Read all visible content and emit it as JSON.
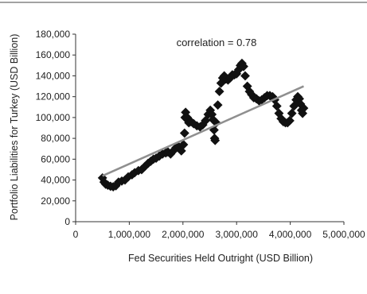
{
  "chart_data": {
    "type": "scatter",
    "title": "",
    "xlabel": "Fed Securities Held Outright (USD Billion)",
    "ylabel": "Portfolio Liabilities for Turkey (USD Billion)",
    "annotation": "correlation = 0.78",
    "xlim": [
      0,
      5000000
    ],
    "ylim": [
      0,
      180000
    ],
    "x_ticks": [
      0,
      1000000,
      2000000,
      3000000,
      4000000,
      5000000
    ],
    "x_tick_labels": [
      "0",
      "1,000,000",
      "2,000,000",
      "3,000,000",
      "4,000,000",
      "5,000,000"
    ],
    "y_ticks": [
      0,
      20000,
      40000,
      60000,
      80000,
      100000,
      120000,
      140000,
      160000,
      180000
    ],
    "y_tick_labels": [
      "0",
      "20,000",
      "40,000",
      "60,000",
      "80,000",
      "100,000",
      "120,000",
      "140,000",
      "160,000",
      "180,000"
    ],
    "grid": false,
    "series": [
      {
        "marker": "diamond",
        "color": "#111111",
        "points": [
          [
            500000,
            42000
          ],
          [
            530000,
            38000
          ],
          [
            560000,
            36000
          ],
          [
            600000,
            35000
          ],
          [
            650000,
            34000
          ],
          [
            700000,
            33500
          ],
          [
            750000,
            34500
          ],
          [
            800000,
            38000
          ],
          [
            860000,
            39000
          ],
          [
            920000,
            40000
          ],
          [
            980000,
            43000
          ],
          [
            1050000,
            45000
          ],
          [
            1100000,
            47000
          ],
          [
            1170000,
            49000
          ],
          [
            1230000,
            50000
          ],
          [
            1290000,
            53000
          ],
          [
            1350000,
            56000
          ],
          [
            1400000,
            58000
          ],
          [
            1450000,
            60000
          ],
          [
            1500000,
            61000
          ],
          [
            1560000,
            63000
          ],
          [
            1620000,
            65000
          ],
          [
            1680000,
            66000
          ],
          [
            1720000,
            67000
          ],
          [
            1770000,
            65000
          ],
          [
            1820000,
            68000
          ],
          [
            1870000,
            71000
          ],
          [
            1920000,
            72000
          ],
          [
            1970000,
            68000
          ],
          [
            2010000,
            74000
          ],
          [
            2030000,
            85000
          ],
          [
            2040000,
            100000
          ],
          [
            2050000,
            105000
          ],
          [
            2080000,
            100000
          ],
          [
            2110000,
            95000
          ],
          [
            2150000,
            96000
          ],
          [
            2200000,
            94000
          ],
          [
            2260000,
            92000
          ],
          [
            2320000,
            91000
          ],
          [
            2370000,
            93000
          ],
          [
            2420000,
            97000
          ],
          [
            2470000,
            103000
          ],
          [
            2510000,
            107000
          ],
          [
            2540000,
            103000
          ],
          [
            2560000,
            98000
          ],
          [
            2580000,
            88000
          ],
          [
            2590000,
            80000
          ],
          [
            2600000,
            78000
          ],
          [
            2620000,
            95000
          ],
          [
            2650000,
            112000
          ],
          [
            2680000,
            125000
          ],
          [
            2710000,
            133000
          ],
          [
            2740000,
            138000
          ],
          [
            2770000,
            140000
          ],
          [
            2800000,
            137000
          ],
          [
            2840000,
            136000
          ],
          [
            2880000,
            138000
          ],
          [
            2920000,
            141000
          ],
          [
            2960000,
            141000
          ],
          [
            3000000,
            142000
          ],
          [
            3040000,
            146000
          ],
          [
            3070000,
            150000
          ],
          [
            3100000,
            152000
          ],
          [
            3130000,
            149000
          ],
          [
            3160000,
            140000
          ],
          [
            3200000,
            130000
          ],
          [
            3240000,
            125000
          ],
          [
            3280000,
            122000
          ],
          [
            3320000,
            119000
          ],
          [
            3370000,
            118000
          ],
          [
            3420000,
            116000
          ],
          [
            3470000,
            117000
          ],
          [
            3520000,
            119000
          ],
          [
            3570000,
            121000
          ],
          [
            3620000,
            121000
          ],
          [
            3670000,
            120000
          ],
          [
            3710000,
            117000
          ],
          [
            3750000,
            111000
          ],
          [
            3790000,
            104000
          ],
          [
            3830000,
            99000
          ],
          [
            3870000,
            96000
          ],
          [
            3910000,
            95000
          ],
          [
            3950000,
            95000
          ],
          [
            3990000,
            97000
          ],
          [
            4030000,
            104000
          ],
          [
            4070000,
            111000
          ],
          [
            4110000,
            117000
          ],
          [
            4140000,
            120000
          ],
          [
            4170000,
            118000
          ],
          [
            4190000,
            113000
          ],
          [
            4210000,
            107000
          ],
          [
            4230000,
            104000
          ],
          [
            4250000,
            109000
          ]
        ]
      }
    ],
    "trendline": {
      "color": "#8f8f8f",
      "x": [
        500000,
        4250000
      ],
      "y": [
        44000,
        130000
      ]
    }
  }
}
